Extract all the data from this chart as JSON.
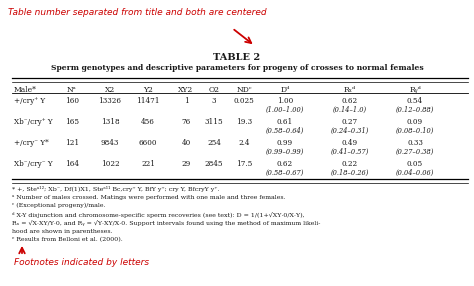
{
  "title_label": "TABLE 2",
  "subtitle": "Sperm genotypes and descriptive parameters for progeny of crosses to normal females",
  "annotation_top": "Table number separated from title and both are centered",
  "annotation_bottom": "Footnotes indicated by letters",
  "headers": [
    "Male*",
    "Nᵃ",
    "X2",
    "Y2",
    "XY2",
    "O2",
    "NDᶜ",
    "Dᵈ",
    "Rₓᵈ",
    "Rᵧᵈ"
  ],
  "rows": [
    {
      "col0": "+/cry⁺ Y",
      "col1": "160",
      "col2": "13326",
      "col3": "11471",
      "col4": "1",
      "col5": "3",
      "col6": "0.025",
      "col7": "1.00\n(1.00–1.00)",
      "col8": "0.62\n(0.14–1.0)",
      "col9": "0.54\n(0.12–0.88)"
    },
    {
      "col0": "Xb⁻/cry⁺ Y",
      "col1": "165",
      "col2": "1318",
      "col3": "456",
      "col4": "76",
      "col5": "3115",
      "col6": "19.3",
      "col7": "0.61\n(0.58–0.64)",
      "col8": "0.27\n(0.24–0.31)",
      "col9": "0.09\n(0.08–0.10)"
    },
    {
      "col0": "+/cry⁻ Y*",
      "col1": "121",
      "col2": "9843",
      "col3": "6600",
      "col4": "40",
      "col5": "254",
      "col6": "2.4",
      "col7": "0.99\n(0.99–0.99)",
      "col8": "0.49\n(0.41–0.57)",
      "col9": "0.33\n(0.27–0.38)"
    },
    {
      "col0": "Xb⁻/cry⁻ Y",
      "col1": "164",
      "col2": "1022",
      "col3": "221",
      "col4": "29",
      "col5": "2845",
      "col6": "17.5",
      "col7": "0.62\n(0.58–0.67)",
      "col8": "0.22\n(0.18–0.26)",
      "col9": "0.05\n(0.04–0.06)"
    }
  ],
  "footnote_lines": [
    "* +, Steᵃ¹²; Xb⁻, Df(1)X1, Steᵃ¹¹ Bc,cry⁺ Y, BfY y⁺; cry Y, BfcryY y⁺.",
    "ᵃ Number of males crossed. Matings were performed with one male and three females.",
    "ᶜ (Exceptional progeny)/male.",
    "ᵈ X-Y disjunction and chromosome-specific sperm recoveries (see text): D = 1/(1+√XY·0/X·Y),",
    "Rₓ = √X·XY/Y·0, and Rᵧ = √Y·XY/X·0. Support intervals found using the method of maximum likeli-",
    "hood are shown in parentheses.",
    "ᵉ Results from Belloni et al. (2000)."
  ],
  "bg_color": "#ffffff",
  "text_color": "#1a1a1a",
  "red_color": "#cc0000",
  "fig_width": 4.74,
  "fig_height": 2.86
}
